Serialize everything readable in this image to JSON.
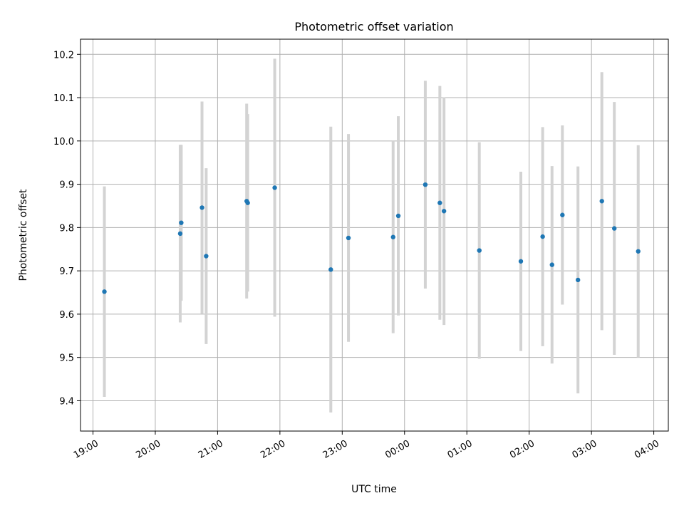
{
  "chart_data": {
    "type": "scatter",
    "title": "Photometric offset variation",
    "xlabel": "UTC time",
    "ylabel": "Photometric offset",
    "x_ticks": [
      "19:00",
      "20:00",
      "21:00",
      "22:00",
      "23:00",
      "00:00",
      "01:00",
      "02:00",
      "03:00",
      "04:00"
    ],
    "x_tick_hours": [
      19,
      20,
      21,
      22,
      23,
      24,
      25,
      26,
      27,
      28
    ],
    "xlim": [
      "18:48",
      "04:14"
    ],
    "y_ticks": [
      "9.4",
      "9.5",
      "9.6",
      "9.7",
      "9.8",
      "9.9",
      "10.0",
      "10.1",
      "10.2"
    ],
    "ylim": [
      9.33,
      10.235
    ],
    "grid": true,
    "colors": {
      "point": "#1f77b4",
      "errorbar": "#d3d3d3"
    },
    "series": [
      {
        "points": [
          {
            "x": "19:11",
            "y": 9.652,
            "err": 0.243
          },
          {
            "x": "20:24",
            "y": 9.786,
            "err": 0.205
          },
          {
            "x": "20:25",
            "y": 9.811,
            "err": 0.18
          },
          {
            "x": "20:45",
            "y": 9.846,
            "err": 0.245
          },
          {
            "x": "20:49",
            "y": 9.734,
            "err": 0.203
          },
          {
            "x": "21:28",
            "y": 9.861,
            "err": 0.225
          },
          {
            "x": "21:29",
            "y": 9.857,
            "err": 0.205
          },
          {
            "x": "21:55",
            "y": 9.892,
            "err": 0.298
          },
          {
            "x": "22:49",
            "y": 9.703,
            "err": 0.33
          },
          {
            "x": "23:06",
            "y": 9.776,
            "err": 0.24
          },
          {
            "x": "23:49",
            "y": 9.778,
            "err": 0.222
          },
          {
            "x": "23:54",
            "y": 9.827,
            "err": 0.23
          },
          {
            "x": "00:20",
            "y": 9.899,
            "err": 0.24
          },
          {
            "x": "00:34",
            "y": 9.857,
            "err": 0.27
          },
          {
            "x": "00:38",
            "y": 9.838,
            "err": 0.263
          },
          {
            "x": "01:12",
            "y": 9.747,
            "err": 0.25
          },
          {
            "x": "01:52",
            "y": 9.722,
            "err": 0.207
          },
          {
            "x": "02:13",
            "y": 9.779,
            "err": 0.253
          },
          {
            "x": "02:22",
            "y": 9.714,
            "err": 0.228
          },
          {
            "x": "02:32",
            "y": 9.829,
            "err": 0.207
          },
          {
            "x": "02:47",
            "y": 9.679,
            "err": 0.262
          },
          {
            "x": "03:10",
            "y": 9.861,
            "err": 0.298
          },
          {
            "x": "03:22",
            "y": 9.798,
            "err": 0.292
          },
          {
            "x": "03:45",
            "y": 9.745,
            "err": 0.245
          }
        ]
      }
    ]
  }
}
